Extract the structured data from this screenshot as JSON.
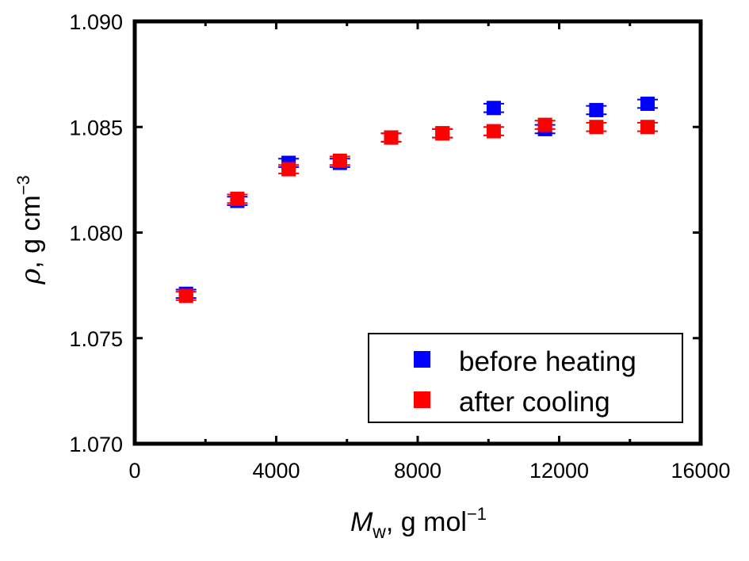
{
  "chart_data": {
    "type": "scatter",
    "xlabel": {
      "symbol": "M",
      "subscript": "w",
      "rest": ", g mol",
      "sup": "−1"
    },
    "ylabel": {
      "symbol": "ρ",
      "rest": ", g cm",
      "sup": "−3"
    },
    "xlim": [
      0,
      16000
    ],
    "ylim": [
      1.07,
      1.09
    ],
    "xticks": [
      0,
      4000,
      8000,
      12000,
      16000
    ],
    "xtick_labels": [
      "0",
      "4000",
      "8000",
      "12000",
      "16000"
    ],
    "yticks": [
      1.07,
      1.075,
      1.08,
      1.085,
      1.09
    ],
    "ytick_labels": [
      "1.070",
      "1.075",
      "1.080",
      "1.085",
      "1.090"
    ],
    "grid": false,
    "legend_position": "bottom-right",
    "series": [
      {
        "name": "before heating",
        "color": "#0000ff",
        "marker": "square",
        "x": [
          1450,
          2900,
          4350,
          5800,
          7250,
          8700,
          10150,
          11600,
          13050,
          14500
        ],
        "y": [
          1.0771,
          1.0815,
          1.0833,
          1.0833,
          1.0845,
          1.0847,
          1.0859,
          1.0849,
          1.0858,
          1.0861
        ],
        "yerr": [
          0.0002,
          0.0002,
          0.0002,
          0.0002,
          0.0002,
          0.0002,
          0.0002,
          0.0002,
          0.0002,
          0.0002
        ]
      },
      {
        "name": "after cooling",
        "color": "#ff0000",
        "marker": "square",
        "x": [
          1450,
          2900,
          4350,
          5800,
          7250,
          8700,
          10150,
          11600,
          13050,
          14500
        ],
        "y": [
          1.077,
          1.0816,
          1.083,
          1.0834,
          1.0845,
          1.0847,
          1.0848,
          1.0851,
          1.085,
          1.085
        ],
        "yerr": [
          0.0002,
          0.0002,
          0.0002,
          0.0002,
          0.0002,
          0.0002,
          0.0002,
          0.0002,
          0.0002,
          0.0002
        ]
      }
    ]
  }
}
